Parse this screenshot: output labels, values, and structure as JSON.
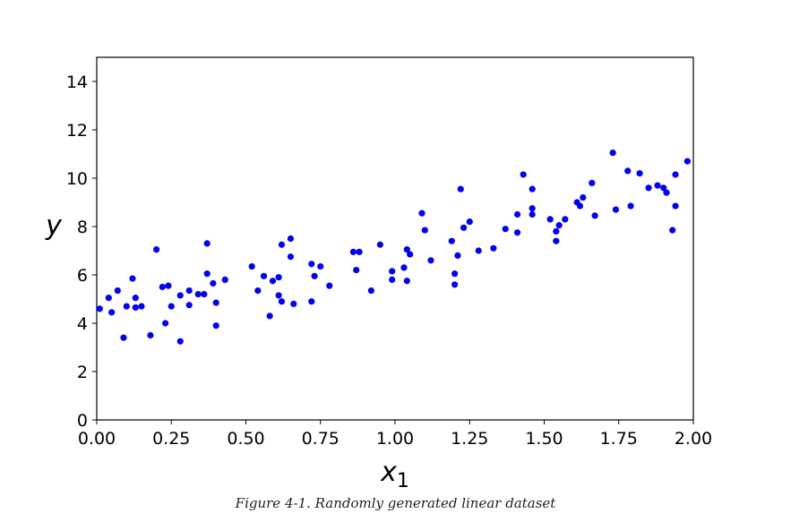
{
  "chart_data": {
    "type": "scatter",
    "title": "",
    "xlabel": "x",
    "xlabel_sub": "1",
    "ylabel": "y",
    "xlim": [
      0,
      2
    ],
    "ylim": [
      0,
      15
    ],
    "xticks": [
      "0.00",
      "0.25",
      "0.50",
      "0.75",
      "1.00",
      "1.25",
      "1.50",
      "1.75",
      "2.00"
    ],
    "xtick_values": [
      0,
      0.25,
      0.5,
      0.75,
      1.0,
      1.25,
      1.5,
      1.75,
      2.0
    ],
    "yticks": [
      "0",
      "2",
      "4",
      "6",
      "8",
      "10",
      "12",
      "14"
    ],
    "ytick_values": [
      0,
      2,
      4,
      6,
      8,
      10,
      12,
      14
    ],
    "grid": false,
    "marker_color": "#0000ee",
    "points": [
      [
        0.01,
        4.6
      ],
      [
        0.04,
        5.05
      ],
      [
        0.05,
        4.45
      ],
      [
        0.07,
        5.35
      ],
      [
        0.09,
        3.4
      ],
      [
        0.1,
        4.7
      ],
      [
        0.12,
        5.85
      ],
      [
        0.13,
        5.05
      ],
      [
        0.13,
        4.65
      ],
      [
        0.15,
        4.7
      ],
      [
        0.18,
        3.5
      ],
      [
        0.2,
        7.05
      ],
      [
        0.22,
        5.5
      ],
      [
        0.23,
        4.0
      ],
      [
        0.24,
        5.55
      ],
      [
        0.25,
        4.7
      ],
      [
        0.28,
        5.15
      ],
      [
        0.28,
        3.25
      ],
      [
        0.31,
        4.75
      ],
      [
        0.31,
        5.35
      ],
      [
        0.34,
        5.2
      ],
      [
        0.36,
        5.2
      ],
      [
        0.37,
        7.3
      ],
      [
        0.37,
        6.05
      ],
      [
        0.39,
        5.65
      ],
      [
        0.4,
        3.9
      ],
      [
        0.4,
        4.85
      ],
      [
        0.43,
        5.8
      ],
      [
        0.52,
        6.35
      ],
      [
        0.54,
        5.35
      ],
      [
        0.56,
        5.95
      ],
      [
        0.58,
        4.3
      ],
      [
        0.59,
        5.75
      ],
      [
        0.61,
        5.15
      ],
      [
        0.61,
        5.9
      ],
      [
        0.62,
        7.25
      ],
      [
        0.62,
        4.9
      ],
      [
        0.65,
        7.5
      ],
      [
        0.65,
        6.75
      ],
      [
        0.66,
        4.8
      ],
      [
        0.72,
        4.9
      ],
      [
        0.72,
        6.45
      ],
      [
        0.73,
        5.95
      ],
      [
        0.75,
        6.35
      ],
      [
        0.78,
        5.55
      ],
      [
        0.86,
        6.95
      ],
      [
        0.87,
        6.2
      ],
      [
        0.88,
        6.95
      ],
      [
        0.92,
        5.35
      ],
      [
        0.95,
        7.25
      ],
      [
        0.99,
        6.15
      ],
      [
        0.99,
        5.8
      ],
      [
        1.03,
        6.3
      ],
      [
        1.04,
        5.75
      ],
      [
        1.04,
        7.05
      ],
      [
        1.05,
        6.85
      ],
      [
        1.09,
        8.55
      ],
      [
        1.1,
        7.85
      ],
      [
        1.12,
        6.6
      ],
      [
        1.19,
        7.4
      ],
      [
        1.2,
        6.05
      ],
      [
        1.2,
        5.6
      ],
      [
        1.21,
        6.8
      ],
      [
        1.22,
        9.55
      ],
      [
        1.23,
        7.95
      ],
      [
        1.25,
        8.2
      ],
      [
        1.28,
        7.0
      ],
      [
        1.33,
        7.1
      ],
      [
        1.37,
        7.9
      ],
      [
        1.41,
        8.5
      ],
      [
        1.41,
        7.75
      ],
      [
        1.43,
        10.15
      ],
      [
        1.46,
        9.55
      ],
      [
        1.46,
        8.75
      ],
      [
        1.46,
        8.5
      ],
      [
        1.52,
        8.3
      ],
      [
        1.54,
        7.8
      ],
      [
        1.54,
        7.4
      ],
      [
        1.55,
        8.05
      ],
      [
        1.57,
        8.3
      ],
      [
        1.61,
        9.0
      ],
      [
        1.62,
        8.85
      ],
      [
        1.63,
        9.2
      ],
      [
        1.66,
        9.8
      ],
      [
        1.67,
        8.45
      ],
      [
        1.73,
        11.05
      ],
      [
        1.74,
        8.7
      ],
      [
        1.78,
        10.3
      ],
      [
        1.79,
        8.85
      ],
      [
        1.82,
        10.2
      ],
      [
        1.85,
        9.6
      ],
      [
        1.88,
        9.7
      ],
      [
        1.9,
        9.6
      ],
      [
        1.91,
        9.4
      ],
      [
        1.93,
        7.85
      ],
      [
        1.94,
        8.85
      ],
      [
        1.94,
        10.15
      ],
      [
        1.98,
        10.7
      ]
    ]
  },
  "caption": "Figure 4-1. Randomly generated linear dataset"
}
